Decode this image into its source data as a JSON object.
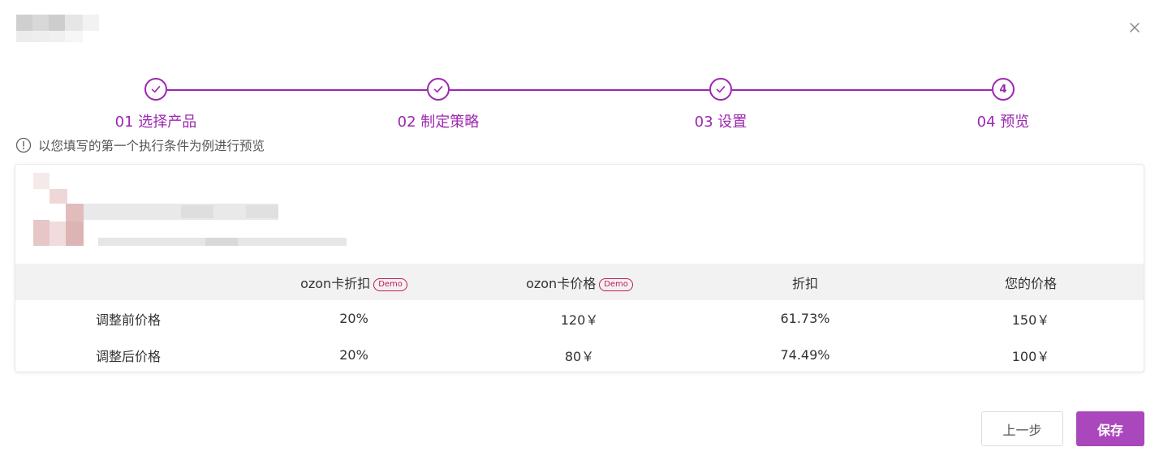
{
  "steps": [
    {
      "number": "01",
      "label": "01 选择产品",
      "status": "done"
    },
    {
      "number": "02",
      "label": "02 制定策略",
      "status": "done"
    },
    {
      "number": "03",
      "label": "03 设置",
      "status": "done"
    },
    {
      "number": "4",
      "label": "04 预览",
      "status": "current"
    }
  ],
  "notice": {
    "text": "以您填写的第一个执行条件为例进行预览"
  },
  "table": {
    "headers": [
      "",
      "ozon卡折扣",
      "ozon卡价格",
      "折扣",
      "您的价格"
    ],
    "demo_badge": "Demo",
    "rows": [
      [
        "调整前价格",
        "20%",
        "120￥",
        "61.73%",
        "150￥"
      ],
      [
        "调整后价格",
        "20%",
        "80￥",
        "74.49%",
        "100￥"
      ]
    ]
  },
  "buttons": {
    "prev_label": "上一步",
    "save_label": "保存"
  },
  "colors": {
    "accent": "#9c27b0",
    "save_button": "#ab47bc",
    "demo_badge": "#c2185b",
    "table_header_bg": "#f2f2f2"
  },
  "icons": {
    "close": "close-icon",
    "check": "check-icon",
    "info": "info-circle-icon"
  }
}
